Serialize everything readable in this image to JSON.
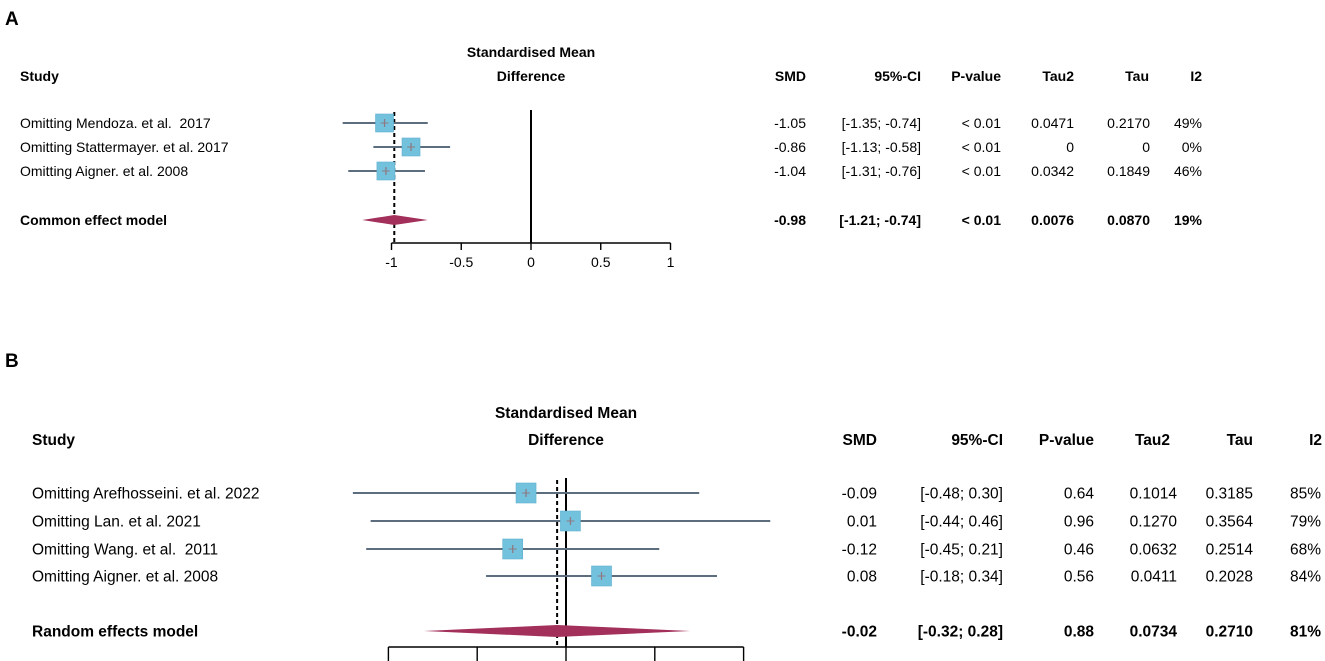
{
  "colors": {
    "text": "#000000",
    "square": "#72c2de",
    "square_border": "#5fafcf",
    "ci_line": "#5c6d7e",
    "diamond": "#a3305a",
    "estimate_mark": "#8d7a82",
    "reference_line": "#000000"
  },
  "chart_data": [
    {
      "type": "scatter",
      "panel_label": "A",
      "effect_header": [
        "Standardised Mean",
        "Difference"
      ],
      "columns": {
        "study": "Study",
        "smd": "SMD",
        "ci": "95%-CI",
        "p": "P-value",
        "tau2": "Tau2",
        "tau": "Tau",
        "i2": "I2"
      },
      "studies": [
        {
          "study": "Omitting Mendoza. et al.  2017",
          "smd": -1.05,
          "ci": [
            -1.35,
            -0.74
          ],
          "ci_label": "[-1.35; -0.74]",
          "p": "< 0.01",
          "tau2": "0.0471",
          "tau": "0.2170",
          "i2": "49%"
        },
        {
          "study": "Omitting Stattermayer. et al. 2017",
          "smd": -0.86,
          "ci": [
            -1.13,
            -0.58
          ],
          "ci_label": "[-1.13; -0.58]",
          "p": "< 0.01",
          "tau2": "0",
          "tau": "0",
          "i2": "0%"
        },
        {
          "study": "Omitting Aigner. et al. 2008",
          "smd": -1.04,
          "ci": [
            -1.31,
            -0.76
          ],
          "ci_label": "[-1.31; -0.76]",
          "p": "< 0.01",
          "tau2": "0.0342",
          "tau": "0.1849",
          "i2": "46%"
        }
      ],
      "summary": {
        "study": "Common effect model",
        "smd": -0.98,
        "ci": [
          -1.21,
          -0.74
        ],
        "ci_label": "[-1.21; -0.74]",
        "p": "< 0.01",
        "tau2": "0.0076",
        "tau": "0.0870",
        "i2": "19%"
      },
      "xaxis": {
        "ticks": [
          -1,
          -0.5,
          0,
          0.5,
          1
        ],
        "tick_labels": [
          "-1",
          "-0.5",
          "0",
          "0.5",
          "1"
        ],
        "reference_value": 0,
        "xlim": [
          -1,
          1
        ]
      }
    },
    {
      "type": "scatter",
      "panel_label": "B",
      "effect_header": [
        "Standardised Mean",
        "Difference"
      ],
      "columns": {
        "study": "Study",
        "smd": "SMD",
        "ci": "95%-CI",
        "p": "P-value",
        "tau2": "Tau2",
        "tau": "Tau",
        "i2": "I2"
      },
      "studies": [
        {
          "study": "Omitting Arefhosseini. et al. 2022",
          "smd": -0.09,
          "ci": [
            -0.48,
            0.3
          ],
          "ci_label": "[-0.48; 0.30]",
          "p": "0.64",
          "tau2": "0.1014",
          "tau": "0.3185",
          "i2": "85%"
        },
        {
          "study": "Omitting Lan. et al. 2021",
          "smd": 0.01,
          "ci": [
            -0.44,
            0.46
          ],
          "ci_label": "[-0.44; 0.46]",
          "p": "0.96",
          "tau2": "0.1270",
          "tau": "0.3564",
          "i2": "79%"
        },
        {
          "study": "Omitting Wang. et al.  2011",
          "smd": -0.12,
          "ci": [
            -0.45,
            0.21
          ],
          "ci_label": "[-0.45; 0.21]",
          "p": "0.46",
          "tau2": "0.0632",
          "tau": "0.2514",
          "i2": "68%"
        },
        {
          "study": "Omitting Aigner. et al. 2008",
          "smd": 0.08,
          "ci": [
            -0.18,
            0.34
          ],
          "ci_label": "[-0.18; 0.34]",
          "p": "0.56",
          "tau2": "0.0411",
          "tau": "0.2028",
          "i2": "84%"
        }
      ],
      "summary": {
        "study": "Random effects model",
        "smd": -0.02,
        "ci": [
          -0.32,
          0.28
        ],
        "ci_label": "[-0.32; 0.28]",
        "p": "0.88",
        "tau2": "0.0734",
        "tau": "0.2710",
        "i2": "81%"
      },
      "xaxis": {
        "ticks": [
          -0.4,
          -0.2,
          0,
          0.2,
          0.4
        ],
        "reference_value": 0,
        "xlim": [
          -0.4,
          0.4
        ]
      }
    }
  ]
}
